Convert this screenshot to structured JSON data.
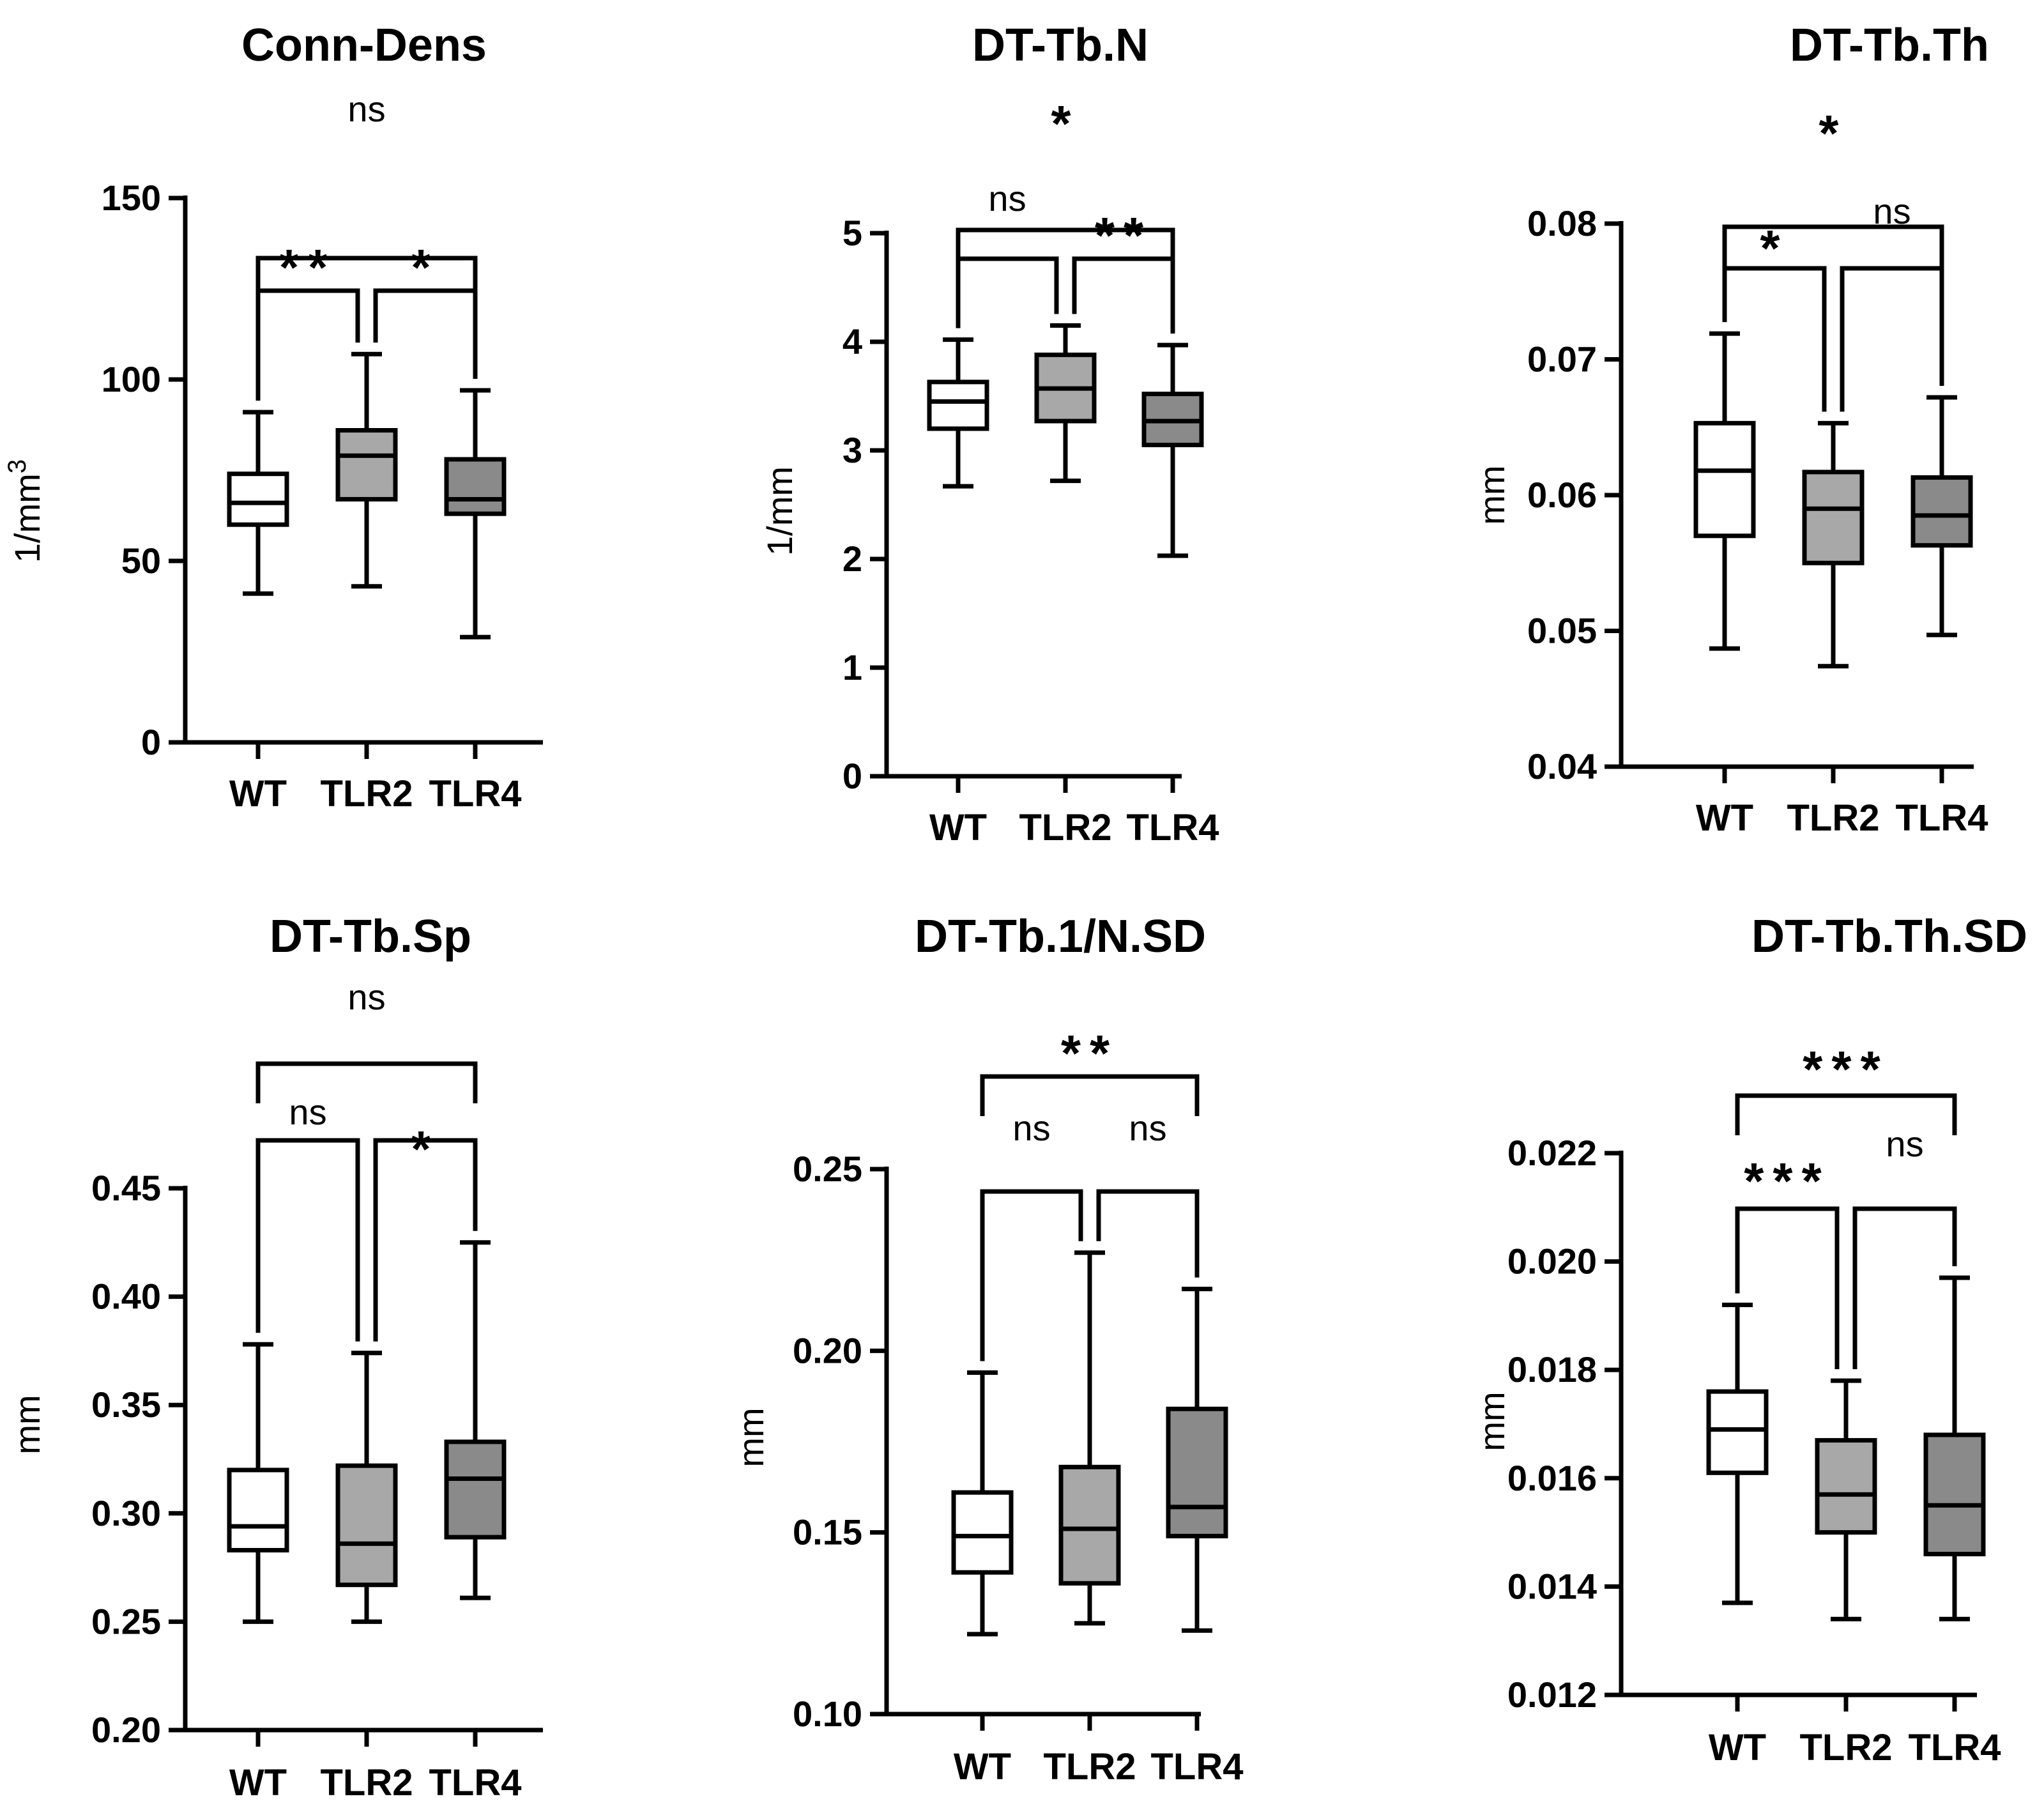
{
  "chart_data": [
    {
      "type": "box",
      "title": "Conn-Dens",
      "ylabel": "1/mm",
      "ylabel_superscript": "3",
      "yticks": [
        "0",
        "50",
        "100",
        "150"
      ],
      "ylim": [
        0,
        150
      ],
      "categories": [
        "WT",
        "TLR2",
        "TLR4"
      ],
      "colors": [
        "#ffffff",
        "#a8a8a8",
        "#8a8a8a"
      ],
      "boxes": [
        {
          "min": 41,
          "q1": 60,
          "median": 66,
          "q3": 74,
          "max": 91
        },
        {
          "min": 43,
          "q1": 67,
          "median": 79,
          "q3": 86,
          "max": 107
        },
        {
          "min": 29,
          "q1": 63,
          "median": 67,
          "q3": 78,
          "max": 97
        }
      ],
      "comparisons": [
        {
          "from": 0,
          "to": 1,
          "label": "**",
          "level": 0
        },
        {
          "from": 1,
          "to": 2,
          "label": "*",
          "level": 0
        },
        {
          "from": 0,
          "to": 2,
          "label": "ns",
          "level": 1
        }
      ]
    },
    {
      "type": "box",
      "title": "DT-Tb.N",
      "ylabel": "1/mm",
      "ylabel_superscript": "",
      "yticks": [
        "0",
        "1",
        "2",
        "3",
        "4",
        "5"
      ],
      "ylim": [
        0,
        5
      ],
      "categories": [
        "WT",
        "TLR2",
        "TLR4"
      ],
      "colors": [
        "#ffffff",
        "#a8a8a8",
        "#8a8a8a"
      ],
      "boxes": [
        {
          "min": 2.67,
          "q1": 3.2,
          "median": 3.45,
          "q3": 3.63,
          "max": 4.02
        },
        {
          "min": 2.72,
          "q1": 3.27,
          "median": 3.57,
          "q3": 3.88,
          "max": 4.15
        },
        {
          "min": 2.03,
          "q1": 3.05,
          "median": 3.27,
          "q3": 3.52,
          "max": 3.97
        }
      ],
      "comparisons": [
        {
          "from": 0,
          "to": 1,
          "label": "ns",
          "level": 0
        },
        {
          "from": 1,
          "to": 2,
          "label": "**",
          "level": 0
        },
        {
          "from": 0,
          "to": 2,
          "label": "*",
          "level": 1
        }
      ]
    },
    {
      "type": "box",
      "title": "DT-Tb.Th",
      "ylabel": "mm",
      "ylabel_superscript": "",
      "yticks": [
        "0.04",
        "0.05",
        "0.06",
        "0.07",
        "0.08"
      ],
      "ylim": [
        0.04,
        0.08
      ],
      "categories": [
        "WT",
        "TLR2",
        "TLR4"
      ],
      "colors": [
        "#ffffff",
        "#a8a8a8",
        "#8a8a8a"
      ],
      "boxes": [
        {
          "min": 0.0487,
          "q1": 0.057,
          "median": 0.0618,
          "q3": 0.0653,
          "max": 0.0719
        },
        {
          "min": 0.0474,
          "q1": 0.055,
          "median": 0.059,
          "q3": 0.0617,
          "max": 0.0653
        },
        {
          "min": 0.0497,
          "q1": 0.0563,
          "median": 0.0585,
          "q3": 0.0613,
          "max": 0.0672
        }
      ],
      "comparisons": [
        {
          "from": 0,
          "to": 1,
          "label": "*",
          "level": 0
        },
        {
          "from": 1,
          "to": 2,
          "label": "ns",
          "level": 0
        },
        {
          "from": 0,
          "to": 2,
          "label": "*",
          "level": 1
        }
      ]
    },
    {
      "type": "box",
      "title": "DT-Tb.Sp",
      "ylabel": "mm",
      "ylabel_superscript": "",
      "yticks": [
        "0.20",
        "0.25",
        "0.30",
        "0.35",
        "0.40",
        "0.45"
      ],
      "ylim": [
        0.2,
        0.45
      ],
      "categories": [
        "WT",
        "TLR2",
        "TLR4"
      ],
      "colors": [
        "#ffffff",
        "#a8a8a8",
        "#8a8a8a"
      ],
      "boxes": [
        {
          "min": 0.25,
          "q1": 0.283,
          "median": 0.294,
          "q3": 0.32,
          "max": 0.378
        },
        {
          "min": 0.25,
          "q1": 0.267,
          "median": 0.286,
          "q3": 0.322,
          "max": 0.374
        },
        {
          "min": 0.261,
          "q1": 0.289,
          "median": 0.316,
          "q3": 0.333,
          "max": 0.425
        }
      ],
      "comparisons": [
        {
          "from": 0,
          "to": 1,
          "label": "ns",
          "level": 0
        },
        {
          "from": 1,
          "to": 2,
          "label": "*",
          "level": 0
        },
        {
          "from": 0,
          "to": 2,
          "label": "ns",
          "level": 1
        }
      ]
    },
    {
      "type": "box",
      "title": "DT-Tb.1/N.SD",
      "ylabel": "mm",
      "ylabel_superscript": "",
      "yticks": [
        "0.10",
        "0.15",
        "0.20",
        "0.25"
      ],
      "ylim": [
        0.1,
        0.25
      ],
      "categories": [
        "WT",
        "TLR2",
        "TLR4"
      ],
      "colors": [
        "#ffffff",
        "#a8a8a8",
        "#8a8a8a"
      ],
      "boxes": [
        {
          "min": 0.122,
          "q1": 0.139,
          "median": 0.149,
          "q3": 0.161,
          "max": 0.194
        },
        {
          "min": 0.125,
          "q1": 0.136,
          "median": 0.151,
          "q3": 0.168,
          "max": 0.227
        },
        {
          "min": 0.123,
          "q1": 0.149,
          "median": 0.157,
          "q3": 0.184,
          "max": 0.217
        }
      ],
      "comparisons": [
        {
          "from": 0,
          "to": 1,
          "label": "ns",
          "level": 0
        },
        {
          "from": 1,
          "to": 2,
          "label": "ns",
          "level": 0
        },
        {
          "from": 0,
          "to": 2,
          "label": "**",
          "level": 1
        }
      ]
    },
    {
      "type": "box",
      "title": "DT-Tb.Th.SD",
      "ylabel": "mm",
      "ylabel_superscript": "",
      "yticks": [
        "0.012",
        "0.014",
        "0.016",
        "0.018",
        "0.020",
        "0.022"
      ],
      "ylim": [
        0.012,
        0.022
      ],
      "categories": [
        "WT",
        "TLR2",
        "TLR4"
      ],
      "colors": [
        "#ffffff",
        "#a8a8a8",
        "#8a8a8a"
      ],
      "boxes": [
        {
          "min": 0.0137,
          "q1": 0.0161,
          "median": 0.0169,
          "q3": 0.0176,
          "max": 0.0192
        },
        {
          "min": 0.0134,
          "q1": 0.015,
          "median": 0.0157,
          "q3": 0.0167,
          "max": 0.0178
        },
        {
          "min": 0.0134,
          "q1": 0.0146,
          "median": 0.0155,
          "q3": 0.0168,
          "max": 0.0197
        }
      ],
      "comparisons": [
        {
          "from": 0,
          "to": 1,
          "label": "***",
          "level": 0
        },
        {
          "from": 1,
          "to": 2,
          "label": "ns",
          "level": 0
        },
        {
          "from": 0,
          "to": 2,
          "label": "***",
          "level": 1
        }
      ]
    }
  ]
}
